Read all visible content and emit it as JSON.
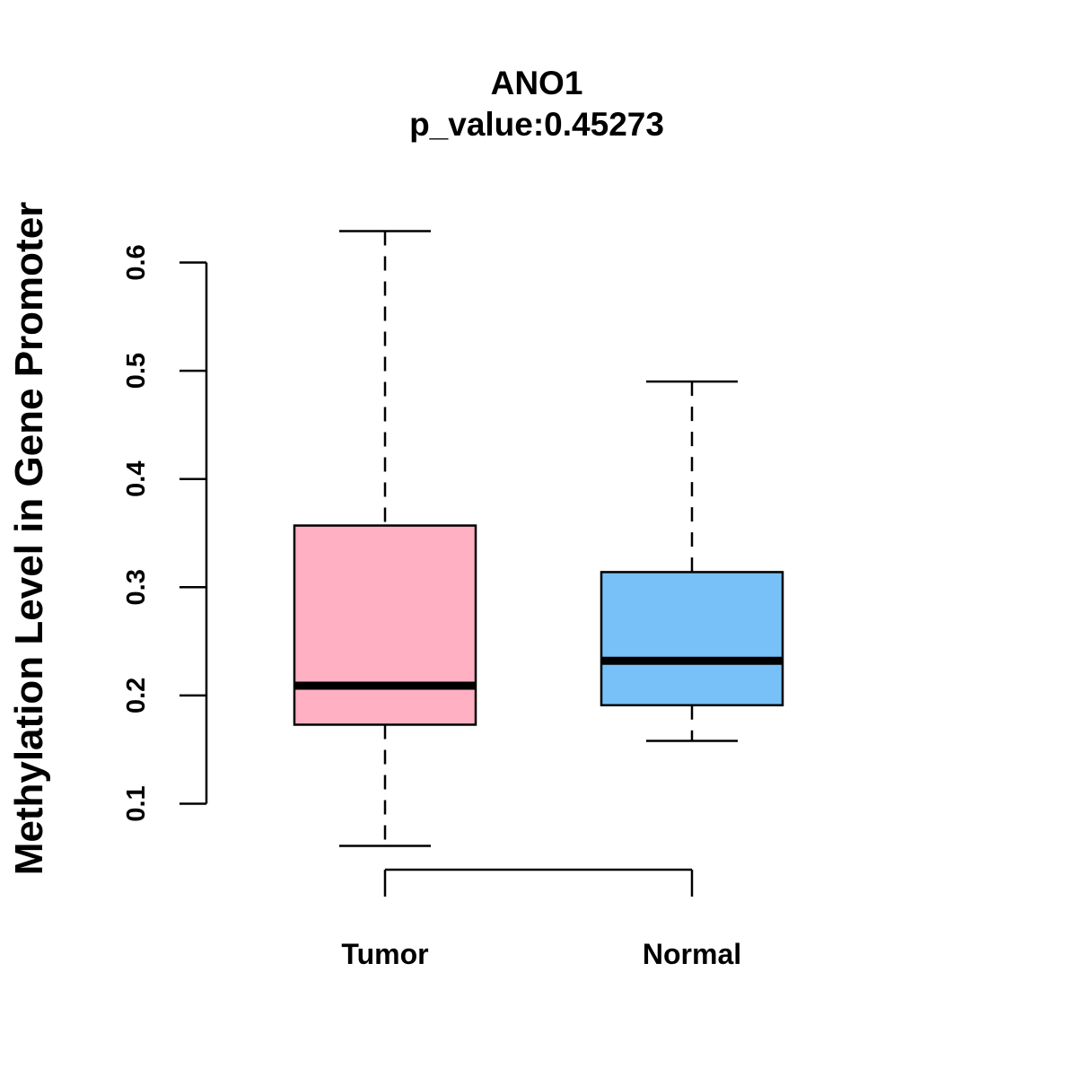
{
  "chart_data": {
    "type": "box",
    "title": "ANO1",
    "subtitle": "p_value:0.45273",
    "xlabel": "",
    "ylabel": "Methylation Level in Gene Promoter",
    "ylim": [
      0.1,
      0.6
    ],
    "yticks": [
      "0.1",
      "0.2",
      "0.3",
      "0.4",
      "0.5",
      "0.6"
    ],
    "ytick_values": [
      0.1,
      0.2,
      0.3,
      0.4,
      0.5,
      0.6
    ],
    "categories": [
      "Tumor",
      "Normal"
    ],
    "boxes": [
      {
        "name": "Tumor",
        "whisker_low": 0.061,
        "q1": 0.173,
        "median": 0.209,
        "q3": 0.357,
        "whisker_high": 0.629,
        "color": "#FFB0C3"
      },
      {
        "name": "Normal",
        "whisker_low": 0.158,
        "q1": 0.191,
        "median": 0.232,
        "q3": 0.314,
        "whisker_high": 0.49,
        "color": "#78C1F8"
      }
    ],
    "grid": false,
    "legend": "none"
  }
}
